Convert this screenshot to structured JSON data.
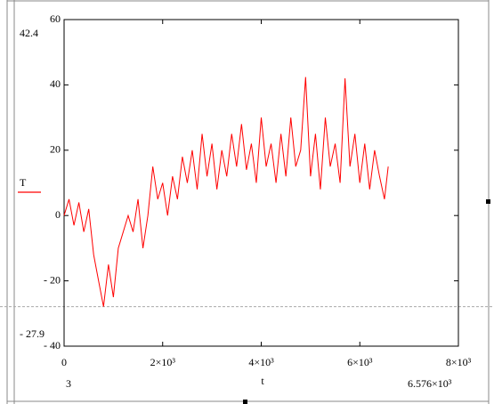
{
  "chart_data": {
    "type": "line",
    "xlabel": "t",
    "x": [
      0,
      100,
      200,
      300,
      400,
      500,
      600,
      700,
      800,
      900,
      1000,
      1100,
      1200,
      1300,
      1400,
      1500,
      1600,
      1700,
      1800,
      1900,
      2000,
      2100,
      2200,
      2300,
      2400,
      2500,
      2600,
      2700,
      2800,
      2900,
      3000,
      3100,
      3200,
      3300,
      3400,
      3500,
      3600,
      3700,
      3800,
      3900,
      4000,
      4100,
      4200,
      4300,
      4400,
      4500,
      4600,
      4700,
      4800,
      4900,
      5000,
      5100,
      5200,
      5300,
      5400,
      5500,
      5600,
      5700,
      5800,
      5900,
      6000,
      6100,
      6200,
      6300,
      6400,
      6500,
      6576
    ],
    "series": [
      {
        "name": "T",
        "color": "#ff0000",
        "values": [
          0,
          5,
          -3,
          4,
          -5,
          2,
          -12,
          -20,
          -27.9,
          -15,
          -25,
          -10,
          -5,
          0,
          -5,
          5,
          -10,
          0,
          15,
          5,
          10,
          0,
          12,
          5,
          18,
          10,
          20,
          8,
          25,
          12,
          22,
          8,
          20,
          12,
          25,
          15,
          28,
          14,
          22,
          10,
          30,
          15,
          22,
          10,
          25,
          12,
          30,
          15,
          20,
          42.4,
          12,
          25,
          8,
          30,
          15,
          22,
          10,
          42,
          15,
          25,
          10,
          22,
          8,
          20,
          12,
          5,
          15
        ]
      }
    ],
    "xlim": [
      0,
      8000
    ],
    "xticks": [
      0,
      {
        "value": 2000,
        "label": "2×10³"
      },
      {
        "value": 4000,
        "label": "4×10³"
      },
      {
        "value": 6000,
        "label": "6×10³"
      },
      {
        "value": 8000,
        "label": "8×10³"
      }
    ],
    "ylim": [
      -40,
      60
    ],
    "yticks": [
      60,
      40,
      20,
      0,
      {
        "value": -20,
        "label": "- 20"
      },
      {
        "value": -40,
        "label": "- 40"
      }
    ],
    "y_markers": [
      {
        "value": 42.4,
        "label": "42.4",
        "line": false
      },
      {
        "value": -27.9,
        "label": "- 27.9",
        "line": true
      }
    ],
    "x_markers": [
      {
        "value": 3,
        "label": "3"
      },
      {
        "value": 6576,
        "label": "6.576×10³"
      }
    ]
  }
}
